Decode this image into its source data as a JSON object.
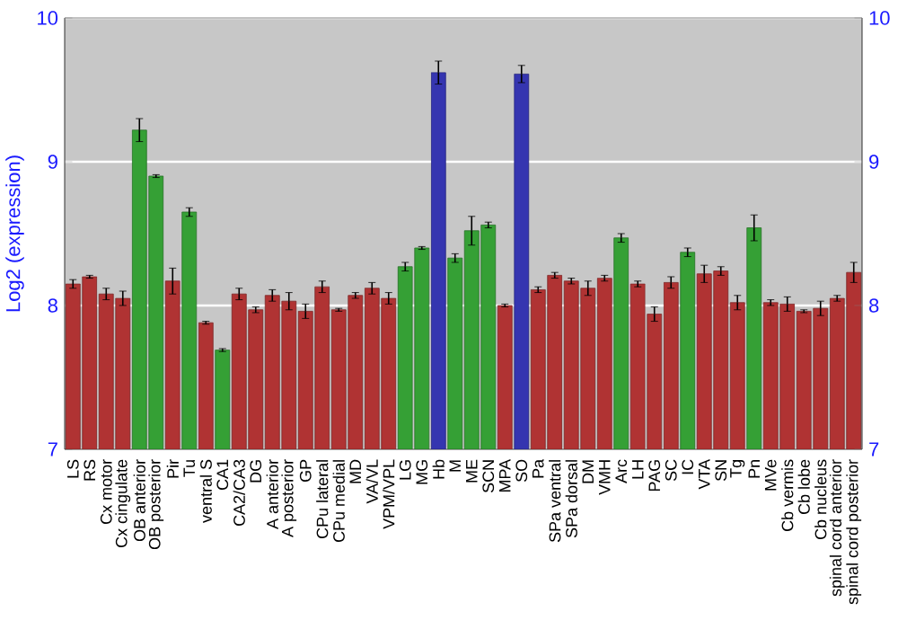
{
  "chart_data": {
    "type": "bar",
    "ylabel": "Log2 (expression)",
    "categories": [
      "LS",
      "RS",
      "Cx motor",
      "Cx cingulate",
      "OB anterior",
      "OB posterior",
      "Pir",
      "Tu",
      "ventral S",
      "CA1",
      "CA2/CA3",
      "DG",
      "A anterior",
      "A posterior",
      "GP",
      "CPu lateral",
      "CPu medial",
      "MD",
      "VA/VL",
      "VPM/VPL",
      "LG",
      "MG",
      "Hb",
      "M",
      "ME",
      "SCN",
      "MPA",
      "SO",
      "Pa",
      "SPa ventral",
      "SPa dorsal",
      "DM",
      "VMH",
      "Arc",
      "LH",
      "PAG",
      "SC",
      "IC",
      "VTA",
      "SN",
      "Tg",
      "Pn",
      "MVe",
      "Cb vermis",
      "Cb lobe",
      "Cb nucleus",
      "spinal cord anterior",
      "spinal cord posterior"
    ],
    "values": [
      8.15,
      8.2,
      8.08,
      8.05,
      9.22,
      8.9,
      8.17,
      8.65,
      7.88,
      7.69,
      8.08,
      7.97,
      8.07,
      8.03,
      7.96,
      8.13,
      7.97,
      8.07,
      8.12,
      8.05,
      8.27,
      8.4,
      9.62,
      8.33,
      8.52,
      8.56,
      8.0,
      9.61,
      8.11,
      8.21,
      8.17,
      8.12,
      8.19,
      8.47,
      8.15,
      7.94,
      8.16,
      8.37,
      8.22,
      8.24,
      8.02,
      8.54,
      8.02,
      8.01,
      7.96,
      7.98,
      8.05,
      8.23
    ],
    "errors": [
      0.03,
      0.01,
      0.04,
      0.05,
      0.08,
      0.01,
      0.09,
      0.03,
      0.01,
      0.01,
      0.04,
      0.02,
      0.04,
      0.06,
      0.05,
      0.04,
      0.01,
      0.02,
      0.04,
      0.04,
      0.03,
      0.01,
      0.08,
      0.03,
      0.1,
      0.02,
      0.01,
      0.06,
      0.02,
      0.02,
      0.02,
      0.05,
      0.02,
      0.03,
      0.02,
      0.05,
      0.04,
      0.03,
      0.06,
      0.03,
      0.05,
      0.09,
      0.02,
      0.05,
      0.01,
      0.05,
      0.02,
      0.07
    ],
    "colors": [
      "#b03333",
      "#b03333",
      "#b03333",
      "#b03333",
      "#35a035",
      "#35a035",
      "#b03333",
      "#35a035",
      "#b03333",
      "#35a035",
      "#b03333",
      "#b03333",
      "#b03333",
      "#b03333",
      "#b03333",
      "#b03333",
      "#b03333",
      "#b03333",
      "#b03333",
      "#b03333",
      "#35a035",
      "#35a035",
      "#3535b0",
      "#35a035",
      "#35a035",
      "#35a035",
      "#b03333",
      "#3535b0",
      "#b03333",
      "#b03333",
      "#b03333",
      "#b03333",
      "#b03333",
      "#35a035",
      "#b03333",
      "#b03333",
      "#b03333",
      "#35a035",
      "#b03333",
      "#b03333",
      "#b03333",
      "#35a035",
      "#b03333",
      "#b03333",
      "#b03333",
      "#b03333",
      "#b03333",
      "#b03333"
    ],
    "ylim": [
      7,
      10
    ],
    "yticks": [
      7,
      8,
      9,
      10
    ],
    "y2lim": [
      7,
      10
    ],
    "y2ticks": [
      7,
      8,
      9,
      10
    ],
    "grid": "y"
  }
}
